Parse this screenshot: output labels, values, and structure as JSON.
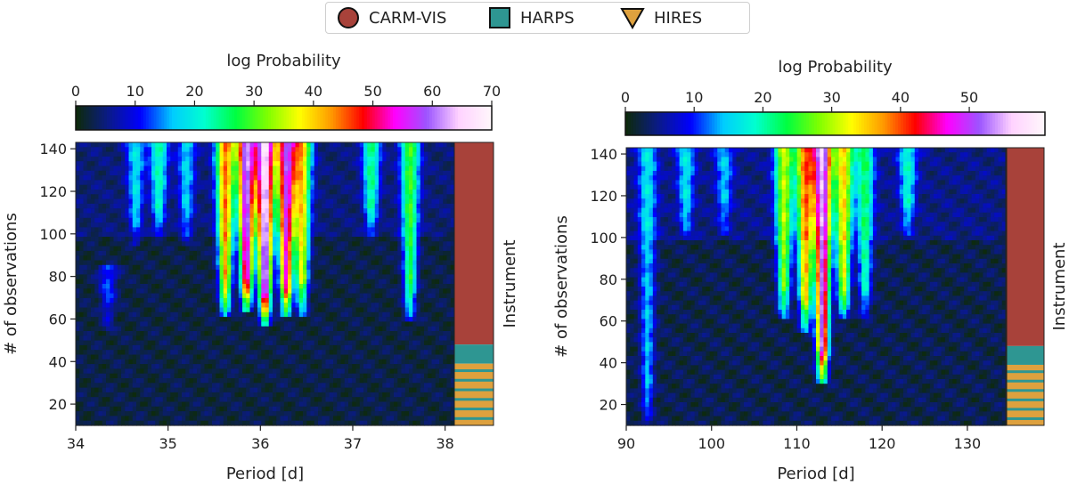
{
  "legend": {
    "items": [
      {
        "label": "CARM-VIS",
        "marker": "circle",
        "color": "#a8423a"
      },
      {
        "label": "HARPS",
        "marker": "square",
        "color": "#2e9692"
      },
      {
        "label": "HIRES",
        "marker": "triangle-down",
        "color": "#dea13e"
      }
    ]
  },
  "colors": {
    "colormap": "gist_ncar",
    "colormap_stops": [
      "#0d2a0d",
      "#0a1a8a",
      "#0000ff",
      "#00ccff",
      "#00ffd0",
      "#00ff40",
      "#80ff00",
      "#ffff00",
      "#ff9900",
      "#ff0000",
      "#ff00ff",
      "#9c55ff",
      "#ffd2ff",
      "#fff6fb"
    ]
  },
  "chart_data": [
    {
      "type": "heatmap",
      "title": "",
      "xlabel": "Period [d]",
      "ylabel": "# of observations",
      "side_label": "Instrument",
      "colorbar_label": "log  Probability",
      "colorbar_range": [
        0,
        70
      ],
      "colorbar_ticks": [
        "0",
        "10",
        "20",
        "30",
        "40",
        "50",
        "60",
        "70"
      ],
      "xlim": [
        34,
        38.1
      ],
      "ylim": [
        10,
        143
      ],
      "xticks": [
        "34",
        "35",
        "36",
        "37",
        "38"
      ],
      "yticks": [
        "20",
        "40",
        "60",
        "80",
        "100",
        "120",
        "140"
      ],
      "peaks": [
        {
          "period": 36.05,
          "obs_min": 57,
          "obs_max": 143,
          "strength": 62
        },
        {
          "period": 35.85,
          "obs_min": 63,
          "obs_max": 143,
          "strength": 56
        },
        {
          "period": 36.28,
          "obs_min": 60,
          "obs_max": 143,
          "strength": 52
        },
        {
          "period": 35.62,
          "obs_min": 60,
          "obs_max": 143,
          "strength": 40
        },
        {
          "period": 36.45,
          "obs_min": 62,
          "obs_max": 143,
          "strength": 35
        },
        {
          "period": 37.62,
          "obs_min": 58,
          "obs_max": 143,
          "strength": 25
        },
        {
          "period": 37.2,
          "obs_min": 98,
          "obs_max": 143,
          "strength": 20
        },
        {
          "period": 34.9,
          "obs_min": 98,
          "obs_max": 143,
          "strength": 18
        },
        {
          "period": 34.65,
          "obs_min": 95,
          "obs_max": 143,
          "strength": 14
        },
        {
          "period": 35.2,
          "obs_min": 95,
          "obs_max": 143,
          "strength": 13
        },
        {
          "period": 34.35,
          "obs_min": 55,
          "obs_max": 85,
          "strength": 10
        }
      ],
      "instrument_strip": [
        {
          "instrument": "CARM-VIS",
          "from": 48,
          "to": 143
        },
        {
          "instrument": "HARPS",
          "from": 39,
          "to": 48
        },
        {
          "instrument": "HIRES",
          "from": 10,
          "to": 39,
          "stripes": "HARPS"
        }
      ]
    },
    {
      "type": "heatmap",
      "title": "",
      "xlabel": "Period [d]",
      "ylabel": "# of observations",
      "side_label": "Instrument",
      "colorbar_label": "log  Probability",
      "colorbar_range": [
        0,
        61
      ],
      "colorbar_ticks": [
        "0",
        "10",
        "20",
        "30",
        "40",
        "50"
      ],
      "xlim": [
        90,
        134.5
      ],
      "ylim": [
        10,
        143
      ],
      "xticks": [
        "90",
        "100",
        "110",
        "120",
        "130"
      ],
      "yticks": [
        "20",
        "40",
        "60",
        "80",
        "100",
        "120",
        "140"
      ],
      "peaks": [
        {
          "period": 113,
          "obs_min": 30,
          "obs_max": 143,
          "strength": 50
        },
        {
          "period": 111,
          "obs_min": 55,
          "obs_max": 143,
          "strength": 34
        },
        {
          "period": 115.5,
          "obs_min": 60,
          "obs_max": 143,
          "strength": 30
        },
        {
          "period": 108.5,
          "obs_min": 60,
          "obs_max": 143,
          "strength": 26
        },
        {
          "period": 118,
          "obs_min": 62,
          "obs_max": 143,
          "strength": 18
        },
        {
          "period": 123,
          "obs_min": 100,
          "obs_max": 143,
          "strength": 14
        },
        {
          "period": 92.5,
          "obs_min": 10,
          "obs_max": 143,
          "strength": 12
        },
        {
          "period": 97,
          "obs_min": 98,
          "obs_max": 143,
          "strength": 12
        },
        {
          "period": 101.5,
          "obs_min": 100,
          "obs_max": 143,
          "strength": 10
        }
      ],
      "instrument_strip": [
        {
          "instrument": "CARM-VIS",
          "from": 48,
          "to": 143
        },
        {
          "instrument": "HARPS",
          "from": 39,
          "to": 48
        },
        {
          "instrument": "HIRES",
          "from": 10,
          "to": 39,
          "stripes": "HARPS"
        }
      ]
    }
  ]
}
